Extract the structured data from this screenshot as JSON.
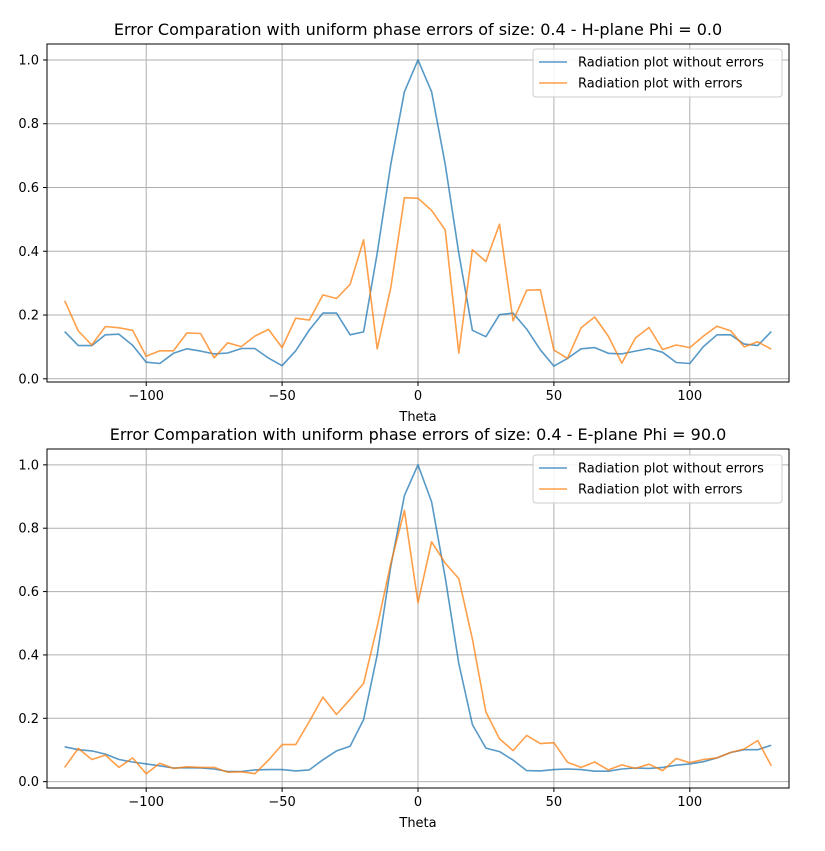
{
  "chart_data": [
    {
      "type": "line",
      "title": "Error Comparation with uniform phase errors of size: 0.4 - H-plane Phi = 0.0",
      "xlabel": "Theta",
      "ylabel": "",
      "xlim": [
        -136.5,
        136.5
      ],
      "ylim": [
        -0.01,
        1.05
      ],
      "xticks": [
        -100,
        -50,
        0,
        50,
        100
      ],
      "xtick_labels": [
        "−100",
        "−50",
        "0",
        "50",
        "100"
      ],
      "yticks": [
        0.0,
        0.2,
        0.4,
        0.6,
        0.8,
        1.0
      ],
      "ytick_labels": [
        "0.0",
        "0.2",
        "0.4",
        "0.6",
        "0.8",
        "1.0"
      ],
      "grid": true,
      "legend_position": "top-right",
      "x": [
        -130,
        -125,
        -120,
        -115,
        -110,
        -105,
        -100,
        -95,
        -90,
        -85,
        -80,
        -75,
        -70,
        -65,
        -60,
        -55,
        -50,
        -45,
        -40,
        -35,
        -30,
        -25,
        -20,
        -15,
        -10,
        -5,
        0,
        5,
        10,
        15,
        20,
        25,
        30,
        35,
        40,
        45,
        50,
        55,
        60,
        65,
        70,
        75,
        80,
        85,
        90,
        95,
        100,
        105,
        110,
        115,
        120,
        125,
        130
      ],
      "series": [
        {
          "name": "Radiation plot without errors",
          "color": "#1f77b4",
          "values": [
            0.148,
            0.104,
            0.104,
            0.138,
            0.14,
            0.105,
            0.052,
            0.048,
            0.08,
            0.094,
            0.087,
            0.078,
            0.081,
            0.095,
            0.095,
            0.065,
            0.041,
            0.088,
            0.153,
            0.206,
            0.206,
            0.138,
            0.147,
            0.394,
            0.673,
            0.9,
            1.0,
            0.9,
            0.673,
            0.394,
            0.152,
            0.132,
            0.201,
            0.206,
            0.156,
            0.091,
            0.04,
            0.064,
            0.094,
            0.098,
            0.08,
            0.078,
            0.087,
            0.095,
            0.083,
            0.051,
            0.048,
            0.101,
            0.138,
            0.138,
            0.109,
            0.104,
            0.148
          ]
        },
        {
          "name": "Radiation plot with errors",
          "color": "#ff7f0e",
          "values": [
            0.245,
            0.15,
            0.106,
            0.164,
            0.16,
            0.152,
            0.071,
            0.088,
            0.088,
            0.144,
            0.142,
            0.066,
            0.113,
            0.101,
            0.134,
            0.155,
            0.098,
            0.19,
            0.184,
            0.263,
            0.252,
            0.296,
            0.436,
            0.094,
            0.286,
            0.568,
            0.566,
            0.528,
            0.467,
            0.081,
            0.405,
            0.368,
            0.485,
            0.182,
            0.278,
            0.279,
            0.09,
            0.064,
            0.16,
            0.194,
            0.134,
            0.049,
            0.128,
            0.161,
            0.092,
            0.106,
            0.098,
            0.134,
            0.165,
            0.151,
            0.1,
            0.116,
            0.093
          ]
        }
      ]
    },
    {
      "type": "line",
      "title": "Error Comparation with uniform phase errors of size: 0.4 - E-plane Phi = 90.0",
      "xlabel": "Theta",
      "ylabel": "",
      "xlim": [
        -136.5,
        136.5
      ],
      "ylim": [
        -0.02,
        1.05
      ],
      "xticks": [
        -100,
        -50,
        0,
        50,
        100
      ],
      "xtick_labels": [
        "−100",
        "−50",
        "0",
        "50",
        "100"
      ],
      "yticks": [
        0.0,
        0.2,
        0.4,
        0.6,
        0.8,
        1.0
      ],
      "ytick_labels": [
        "0.0",
        "0.2",
        "0.4",
        "0.6",
        "0.8",
        "1.0"
      ],
      "grid": true,
      "legend_position": "top-right",
      "x": [
        -130,
        -125,
        -120,
        -115,
        -110,
        -105,
        -100,
        -95,
        -90,
        -85,
        -80,
        -75,
        -70,
        -65,
        -60,
        -55,
        -50,
        -45,
        -40,
        -35,
        -30,
        -25,
        -20,
        -15,
        -10,
        -5,
        0,
        5,
        10,
        15,
        20,
        25,
        30,
        35,
        40,
        45,
        50,
        55,
        60,
        65,
        70,
        75,
        80,
        85,
        90,
        95,
        100,
        105,
        110,
        115,
        120,
        125,
        130
      ],
      "series": [
        {
          "name": "Radiation plot without errors",
          "color": "#1f77b4",
          "values": [
            0.11,
            0.101,
            0.097,
            0.087,
            0.07,
            0.062,
            0.056,
            0.05,
            0.043,
            0.044,
            0.043,
            0.04,
            0.032,
            0.032,
            0.037,
            0.038,
            0.038,
            0.034,
            0.037,
            0.069,
            0.097,
            0.112,
            0.196,
            0.4,
            0.68,
            0.903,
            1.0,
            0.883,
            0.645,
            0.373,
            0.18,
            0.106,
            0.095,
            0.068,
            0.035,
            0.034,
            0.038,
            0.04,
            0.038,
            0.033,
            0.033,
            0.04,
            0.043,
            0.042,
            0.045,
            0.052,
            0.056,
            0.063,
            0.075,
            0.092,
            0.101,
            0.101,
            0.115
          ]
        },
        {
          "name": "Radiation plot with errors",
          "color": "#ff7f0e",
          "values": [
            0.045,
            0.105,
            0.07,
            0.084,
            0.045,
            0.075,
            0.025,
            0.058,
            0.042,
            0.047,
            0.045,
            0.045,
            0.03,
            0.031,
            0.025,
            0.068,
            0.117,
            0.117,
            0.19,
            0.267,
            0.212,
            0.26,
            0.31,
            0.49,
            0.689,
            0.856,
            0.565,
            0.757,
            0.69,
            0.641,
            0.45,
            0.22,
            0.135,
            0.098,
            0.146,
            0.12,
            0.123,
            0.061,
            0.045,
            0.062,
            0.037,
            0.053,
            0.042,
            0.055,
            0.035,
            0.073,
            0.06,
            0.07,
            0.075,
            0.092,
            0.103,
            0.13,
            0.05
          ]
        }
      ]
    }
  ]
}
